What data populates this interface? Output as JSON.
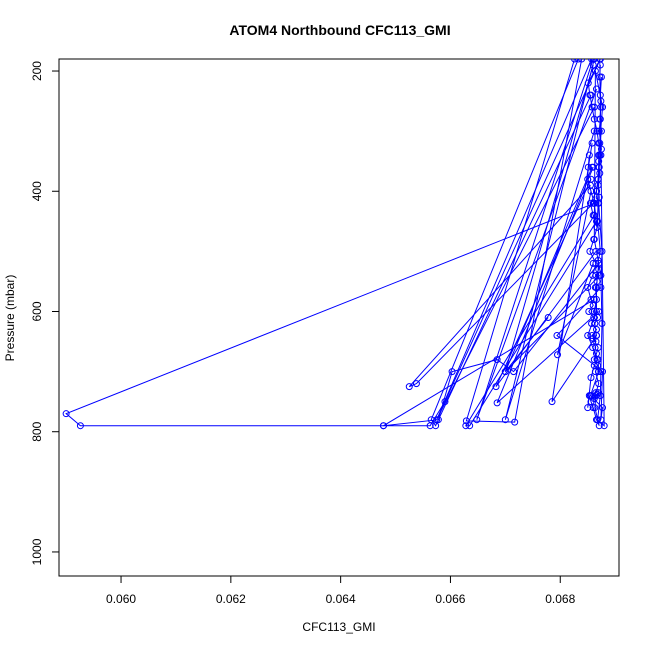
{
  "chart_data": {
    "type": "line",
    "title": "ATOM4 Northbound CFC113_GMI",
    "xlabel": "CFC113_GMI",
    "ylabel": "Pressure (mbar)",
    "xlim": [
      0.05887,
      0.06907
    ],
    "ylim": [
      180,
      1040
    ],
    "y_reversed": true,
    "grid": false,
    "line_color": "#0000ff",
    "marker": "open-circle",
    "x_ticks": [
      0.06,
      0.062,
      0.064,
      0.066,
      0.068
    ],
    "x_tick_labels": [
      "0.060",
      "0.062",
      "0.064",
      "0.066",
      "0.068"
    ],
    "y_ticks": [
      200,
      400,
      600,
      800,
      1000
    ],
    "y_tick_labels": [
      "200",
      "400",
      "600",
      "800",
      "1000"
    ],
    "series": [
      {
        "x": [
          0.06873,
          0.06872,
          0.06874,
          0.06873,
          0.06871,
          0.06875,
          0.0687,
          0.06872,
          0.06869,
          0.06871,
          0.06868,
          0.06873,
          0.06869,
          0.0687,
          0.06865,
          0.06867,
          0.06864,
          0.06866,
          0.06862,
          0.06868,
          0.06863,
          0.06866,
          0.0686,
          0.06869,
          0.06866,
          0.06862,
          0.06868,
          0.06864,
          0.0687,
          0.06865,
          0.06857,
          0.06867,
          0.06862,
          0.06869,
          0.06865,
          0.06863,
          0.06871,
          0.06866,
          0.0686,
          0.06856,
          0.06853,
          0.0685,
          0.06856,
          0.06862,
          0.06867,
          0.06859,
          0.06865,
          0.06858,
          0.06866,
          0.06857,
          0.06861,
          0.06852,
          0.0686,
          0.06856,
          0.0685,
          0.06859,
          0.06865,
          0.06854,
          0.06861,
          0.06867,
          0.0686,
          0.06855,
          0.06866,
          0.06869,
          0.06871,
          0.06874,
          0.06872,
          0.06875,
          0.06872,
          0.06874,
          0.06873,
          0.06875
        ],
        "y": [
          190,
          210,
          250,
          280,
          300,
          330,
          350,
          370,
          390,
          410,
          450,
          500,
          515,
          530,
          540,
          550,
          560,
          580,
          600,
          610,
          620,
          640,
          645,
          660,
          670,
          680,
          690,
          700,
          720,
          735,
          740,
          738,
          745,
          735,
          740,
          760,
          790,
          780,
          760,
          750,
          740,
          760,
          710,
          690,
          680,
          660,
          650,
          640,
          630,
          620,
          610,
          600,
          590,
          580,
          560,
          540,
          520,
          500,
          480,
          460,
          440,
          420,
          400,
          380,
          360,
          340,
          320,
          300,
          280,
          260,
          240,
          210
        ]
      },
      {
        "x": [
          0.06873,
          0.0659,
          0.06563,
          0.06478,
          0.06578,
          0.06603,
          0.06685,
          0.06715,
          0.0687,
          0.06866,
          0.06866,
          0.0685,
          0.06869,
          0.0687,
          0.06855,
          0.06877,
          0.06874,
          0.06877,
          0.06794,
          0.06874,
          0.06876,
          0.0687,
          0.0687,
          0.06877,
          0.06864,
          0.06862,
          0.06874,
          0.06876,
          0.06874,
          0.06873,
          0.06868,
          0.0688,
          0.06872
        ],
        "y": [
          180,
          750,
          790,
          790,
          780,
          700,
          680,
          700,
          520,
          560,
          600,
          640,
          680,
          700,
          740,
          760,
          780,
          700,
          640,
          560,
          500,
          420,
          340,
          260,
          200,
          480,
          540,
          620,
          700,
          740,
          780,
          790,
          180
        ]
      },
      {
        "x": [
          0.06853,
          0.06851,
          0.0685,
          0.06862,
          0.06867,
          0.06869,
          0.06866,
          0.06869,
          0.0687,
          0.06872,
          0.0687,
          0.06867,
          0.06862,
          0.06858,
          0.06854,
          0.06851,
          0.06873
        ],
        "y": [
          340,
          360,
          380,
          420,
          460,
          420,
          400,
          380,
          360,
          340,
          320,
          300,
          280,
          260,
          240,
          220,
          180
        ]
      },
      {
        "x": [
          0.06862,
          0.067,
          0.06862
        ],
        "y": [
          180,
          780,
          300
        ]
      },
      {
        "x": [
          0.06826,
          0.06629,
          0.06717,
          0.06839
        ],
        "y": [
          180,
          782,
          784,
          180
        ]
      },
      {
        "x": [
          0.06833,
          0.06565,
          0.06573,
          0.06856
        ],
        "y": [
          180,
          780,
          790,
          240
        ]
      },
      {
        "x": [
          0.0686,
          0.067,
          0.06778
        ],
        "y": [
          190,
          700,
          610
        ]
      },
      {
        "x": [
          0.06855,
          0.06525,
          0.06538,
          0.0686
        ],
        "y": [
          390,
          725,
          720,
          420
        ]
      },
      {
        "x": [
          0.06862,
          0.06628,
          0.06635,
          0.06866
        ],
        "y": [
          440,
          790,
          790,
          450
        ]
      },
      {
        "x": [
          0.0686,
          0.06685,
          0.0687
        ],
        "y": [
          360,
          752,
          600
        ]
      },
      {
        "x": [
          0.06858,
          0.067,
          0.06872
        ],
        "y": [
          360,
          700,
          540
        ]
      },
      {
        "x": [
          0.06856,
          0.06683,
          0.06865
        ],
        "y": [
          380,
          725,
          500
        ]
      },
      {
        "x": [
          0.06858,
          0.06785,
          0.06866
        ],
        "y": [
          320,
          750,
          640
        ]
      },
      {
        "x": [
          0.06856,
          0.06795,
          0.0686
        ],
        "y": [
          400,
          672,
          520
        ]
      },
      {
        "x": [
          0.06862,
          0.059,
          0.05926,
          0.06478,
          0.06862
        ],
        "y": [
          420,
          770,
          790,
          790,
          580
        ]
      },
      {
        "x": [
          0.0686,
          0.06648,
          0.06866
        ],
        "y": [
          180,
          780,
          230
        ]
      },
      {
        "x": [
          0.06857,
          0.06575,
          0.06862
        ],
        "y": [
          180,
          780,
          260
        ]
      }
    ]
  }
}
